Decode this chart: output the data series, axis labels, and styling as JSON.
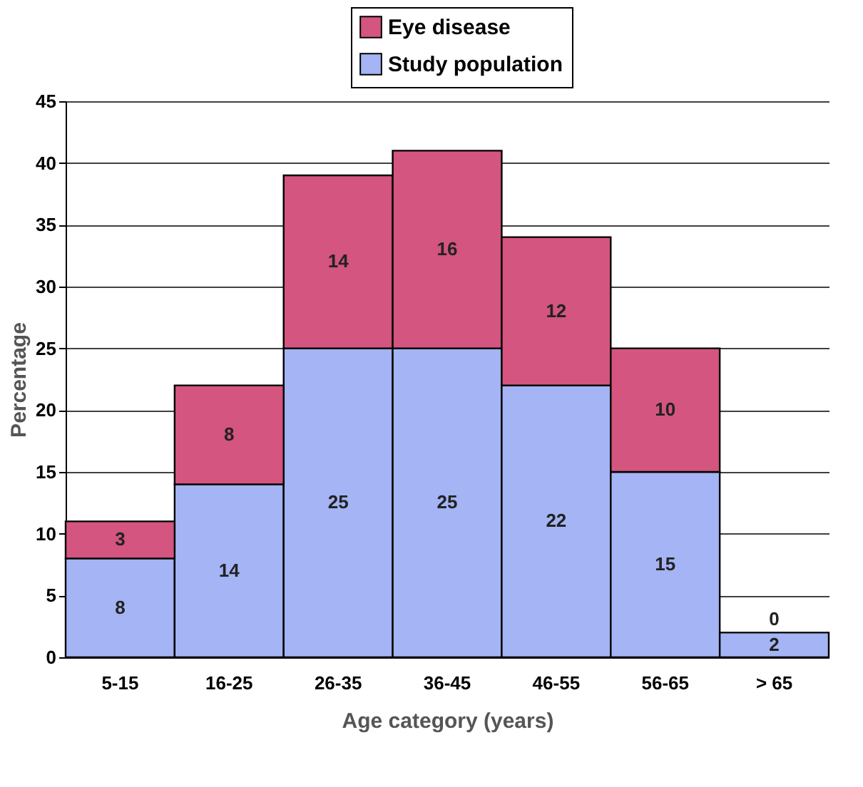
{
  "chart_data": {
    "type": "bar",
    "stacked": true,
    "xlabel": "Age category (years)",
    "ylabel": "Percentage",
    "categories": [
      "5-15",
      "16-25",
      "26-35",
      "36-45",
      "46-55",
      "56-65",
      "> 65"
    ],
    "series": [
      {
        "name": "Study population",
        "color": "#a4b4f4",
        "values": [
          8,
          14,
          25,
          25,
          22,
          15,
          2
        ]
      },
      {
        "name": "Eye disease",
        "color": "#d4557f",
        "values": [
          3,
          8,
          14,
          16,
          12,
          10,
          0
        ]
      }
    ],
    "ylim": [
      0,
      45
    ],
    "yticks": [
      0,
      5,
      10,
      15,
      20,
      25,
      30,
      35,
      40,
      45
    ],
    "grid": "y",
    "legend": "top",
    "data_labels": true
  }
}
